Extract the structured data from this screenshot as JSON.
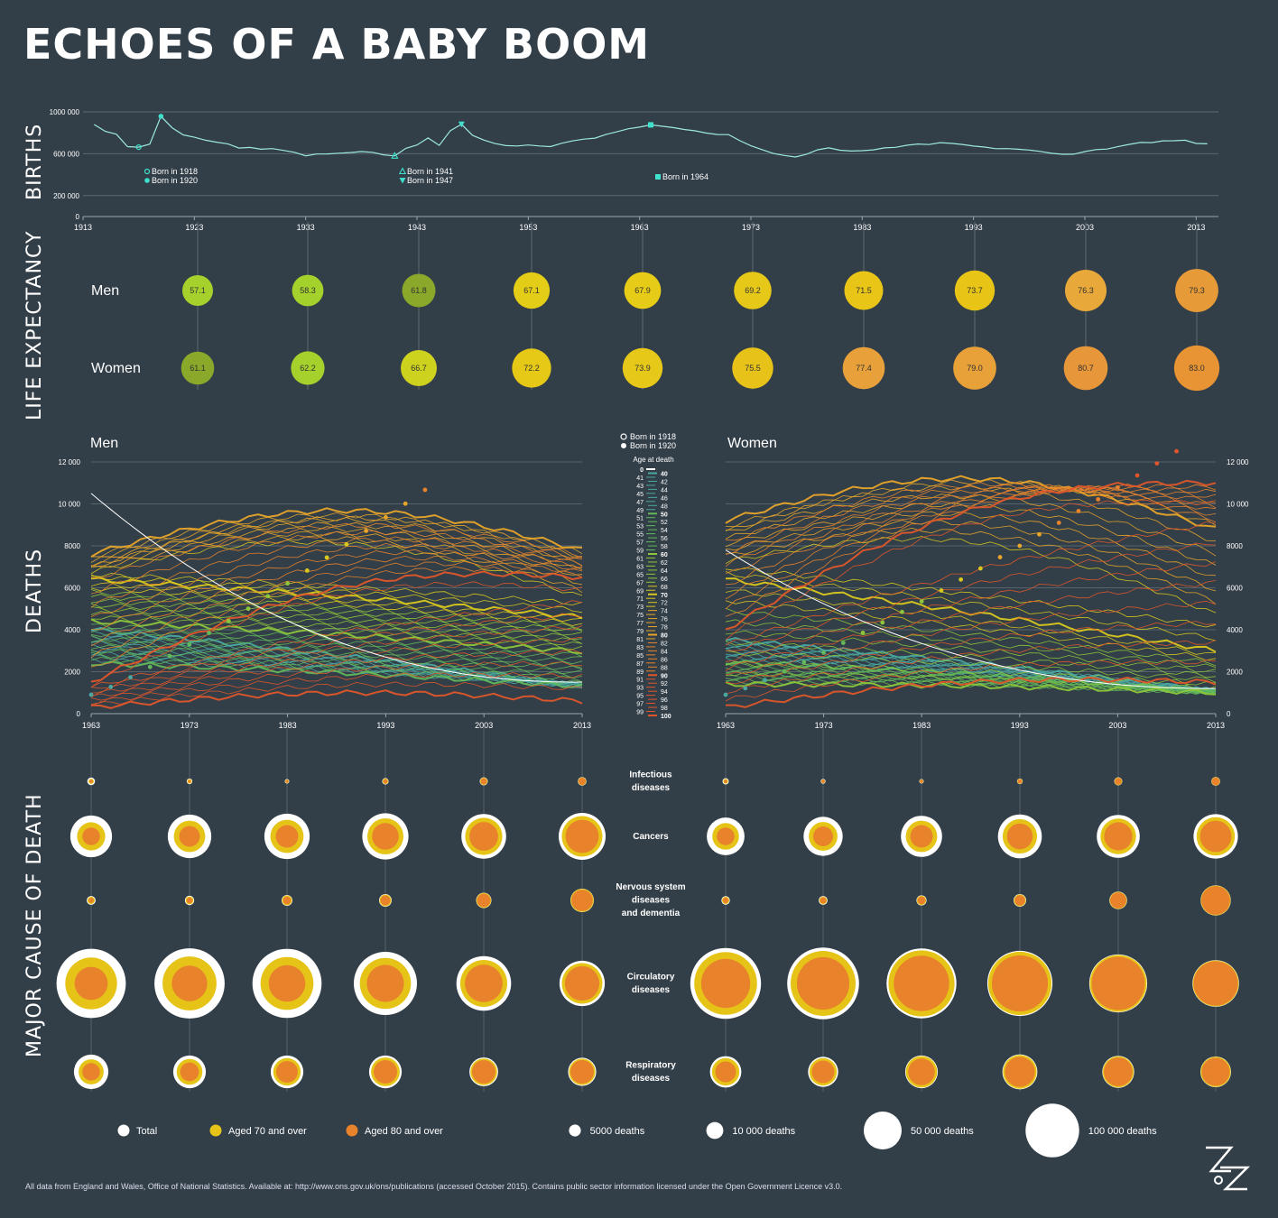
{
  "title": "ECHOES OF A BABY BOOM",
  "section_labels": {
    "births": "BIRTHS",
    "life_expectancy": "LIFE EXPECTANCY",
    "deaths": "DEATHS",
    "cause": "MAJOR CAUSE OF DEATH"
  },
  "colors": {
    "background": "#333f48",
    "births_line": "#9ce8e0",
    "marker": "#3fe0cc",
    "total": "#ffffff",
    "aged70": "#e6c417",
    "aged80": "#e8832c"
  },
  "chart_data": [
    {
      "type": "line",
      "id": "births",
      "x_range": [
        1913,
        2015
      ],
      "ylim": [
        0,
        1000000
      ],
      "y_ticks": [
        "0",
        "200 000",
        "600 000",
        "1000 000"
      ],
      "x_ticks": [
        "1913",
        "1923",
        "1933",
        "1943",
        "1953",
        "1963",
        "1973",
        "1983",
        "1993",
        "2003",
        "2013"
      ],
      "grid": true,
      "years": [
        1914,
        1915,
        1916,
        1917,
        1918,
        1919,
        1920,
        1921,
        1922,
        1923,
        1924,
        1925,
        1926,
        1927,
        1928,
        1929,
        1930,
        1931,
        1932,
        1933,
        1934,
        1935,
        1936,
        1937,
        1938,
        1939,
        1940,
        1941,
        1942,
        1943,
        1944,
        1945,
        1946,
        1947,
        1948,
        1949,
        1950,
        1951,
        1952,
        1953,
        1954,
        1955,
        1956,
        1957,
        1958,
        1959,
        1960,
        1961,
        1962,
        1963,
        1964,
        1965,
        1966,
        1967,
        1968,
        1969,
        1970,
        1971,
        1972,
        1973,
        1974,
        1975,
        1976,
        1977,
        1978,
        1979,
        1980,
        1981,
        1982,
        1983,
        1984,
        1985,
        1986,
        1987,
        1988,
        1989,
        1990,
        1991,
        1992,
        1993,
        1994,
        1995,
        1996,
        1997,
        1998,
        1999,
        2000,
        2001,
        2002,
        2003,
        2004,
        2005,
        2006,
        2007,
        2008,
        2009,
        2010,
        2011,
        2012,
        2013,
        2014
      ],
      "values": [
        879000,
        814000,
        786000,
        668000,
        663000,
        692000,
        958000,
        848000,
        780000,
        758000,
        729000,
        710000,
        695000,
        654000,
        660000,
        643000,
        649000,
        632000,
        614000,
        580000,
        597000,
        598000,
        605000,
        611000,
        621000,
        614000,
        590000,
        579000,
        652000,
        684000,
        751000,
        680000,
        821000,
        881000,
        775000,
        731000,
        697000,
        678000,
        674000,
        684000,
        674000,
        668000,
        700000,
        723000,
        740000,
        749000,
        785000,
        811000,
        839000,
        854000,
        876000,
        863000,
        850000,
        832000,
        819000,
        797000,
        784000,
        783000,
        725000,
        676000,
        640000,
        603000,
        584000,
        569000,
        596000,
        638000,
        656000,
        634000,
        626000,
        629000,
        637000,
        656000,
        661000,
        681000,
        693000,
        688000,
        706000,
        699000,
        689000,
        673000,
        664000,
        648000,
        649000,
        643000,
        635000,
        622000,
        604000,
        595000,
        596000,
        621000,
        640000,
        645000,
        669000,
        690000,
        708000,
        706000,
        723000,
        724000,
        729000,
        698000,
        695000
      ],
      "annotations": [
        {
          "label": "Born in 1918",
          "year": 1918,
          "marker": "open-circle"
        },
        {
          "label": "Born in 1920",
          "year": 1920,
          "marker": "filled-circle"
        },
        {
          "label": "Born in 1941",
          "year": 1941,
          "marker": "open-triangle"
        },
        {
          "label": "Born in 1947",
          "year": 1947,
          "marker": "filled-triangle-down"
        },
        {
          "label": "Born in 1964",
          "year": 1964,
          "marker": "filled-square"
        }
      ]
    },
    {
      "type": "bubble",
      "id": "life_expectancy",
      "row_labels": [
        "Men",
        "Women"
      ],
      "categories": [
        "1923",
        "1933",
        "1943",
        "1953",
        "1963",
        "1973",
        "1983",
        "1993",
        "2003",
        "2013"
      ],
      "series": [
        {
          "name": "Men",
          "values": [
            57.1,
            58.3,
            61.8,
            67.1,
            67.9,
            69.2,
            71.5,
            73.7,
            76.3,
            79.3
          ]
        },
        {
          "name": "Women",
          "values": [
            61.1,
            62.2,
            66.7,
            72.2,
            73.9,
            75.5,
            77.4,
            79.0,
            80.7,
            83.0
          ]
        }
      ],
      "labels": {
        "Men": [
          "57.1",
          "58.3",
          "61.8",
          "67.1",
          "67.9",
          "69.2",
          "71.5",
          "73.7",
          "76.3",
          "79.3"
        ],
        "Women": [
          "61.1",
          "62.2",
          "66.7",
          "72.2",
          "73.9",
          "75.5",
          "77.4",
          "79.0",
          "80.7",
          "83.0"
        ]
      },
      "fill_colors": {
        "Men": [
          "#a6d12c",
          "#a4d12b",
          "#8aa82a",
          "#e4cd17",
          "#e6cb17",
          "#e6c818",
          "#e8c516",
          "#e8c416",
          "#e8a83a",
          "#e69a38"
        ],
        "Women": [
          "#8aa82a",
          "#a6d12c",
          "#ccd21d",
          "#e6c817",
          "#e6c818",
          "#e7c219",
          "#e8a03a",
          "#e8a038",
          "#e8963a",
          "#e89434"
        ]
      }
    },
    {
      "type": "line",
      "id": "deaths",
      "panels": [
        "Men",
        "Women"
      ],
      "x_range": [
        1963,
        2013
      ],
      "x_ticks": [
        "1963",
        "1973",
        "1983",
        "1993",
        "2003",
        "2013"
      ],
      "ylim": [
        0,
        12000
      ],
      "y_ticks": [
        "0",
        "2000",
        "4000",
        "6000",
        "8000",
        "10 000",
        "12 000"
      ],
      "series_by": "Age at death",
      "age_range": [
        40,
        100
      ],
      "legend_title": "Age at death",
      "legend_left": [
        "0",
        "41",
        "43",
        "45",
        "47",
        "49",
        "51",
        "53",
        "55",
        "57",
        "59",
        "61",
        "63",
        "65",
        "67",
        "69",
        "71",
        "73",
        "75",
        "77",
        "79",
        "81",
        "83",
        "85",
        "87",
        "89",
        "91",
        "93",
        "95",
        "97",
        "99"
      ],
      "legend_right": [
        "40",
        "42",
        "44",
        "46",
        "48",
        "50",
        "52",
        "54",
        "56",
        "58",
        "60",
        "62",
        "64",
        "66",
        "68",
        "70",
        "72",
        "74",
        "76",
        "78",
        "80",
        "82",
        "84",
        "86",
        "88",
        "90",
        "92",
        "94",
        "96",
        "98",
        "100"
      ],
      "cohort_legend": [
        "Born in 1918",
        "Born in 1920"
      ],
      "reference_values_men": {
        "age_0": [
          10500,
          1500
        ],
        "age_50": [
          2400,
          1300
        ],
        "age_70": [
          6400,
          4600
        ],
        "age_80": [
          7600,
          7800
        ],
        "age_90": [
          1500,
          6500
        ],
        "age_100": [
          300,
          600
        ]
      },
      "reference_values_women": {
        "age_0": [
          7800,
          1200
        ],
        "age_60": [
          1400,
          1000
        ],
        "age_70": [
          6400,
          3000
        ],
        "age_80": [
          9200,
          8800
        ],
        "age_90": [
          4000,
          11000
        ],
        "age_100": [
          300,
          1500
        ]
      },
      "peak_men": {
        "year": 1998,
        "value": 11000
      },
      "peak_women": {
        "year": 2010,
        "value": 12800
      }
    },
    {
      "type": "bubble",
      "id": "cause_of_death",
      "causes": [
        "Infectious diseases",
        "Cancers",
        "Nervous system diseases and dementia",
        "Circulatory diseases",
        "Respiratory diseases"
      ],
      "years": [
        "1963",
        "1973",
        "1983",
        "1993",
        "2003",
        "2013"
      ],
      "size_unit": "deaths",
      "layers": [
        "Total",
        "Aged 70 and over",
        "Aged 80 and over"
      ],
      "men": {
        "Infectious diseases": {
          "total": [
            1500,
            800,
            500,
            1100,
            1700,
            1900
          ],
          "aged70": [
            700,
            500,
            300,
            800,
            1400,
            1700
          ],
          "aged80": [
            300,
            200,
            200,
            500,
            1000,
            1300
          ]
        },
        "Cancers": {
          "total": [
            44000,
            48000,
            52000,
            54000,
            51000,
            56000
          ],
          "aged70": [
            20000,
            25000,
            28000,
            33000,
            35000,
            42000
          ],
          "aged80": [
            8000,
            11000,
            13000,
            18000,
            21000,
            28000
          ]
        },
        "Nervous system diseases and dementia": {
          "total": [
            2000,
            2200,
            3000,
            4000,
            6000,
            14000
          ],
          "aged70": [
            1300,
            1600,
            2500,
            3500,
            5500,
            13500
          ],
          "aged80": [
            700,
            900,
            1600,
            2500,
            4500,
            11500
          ]
        },
        "Circulatory diseases": {
          "total": [
            122000,
            125000,
            121000,
            101000,
            76000,
            52000
          ],
          "aged70": [
            68000,
            74000,
            71000,
            66000,
            56000,
            42000
          ],
          "aged80": [
            28000,
            32000,
            34000,
            35000,
            36000,
            30000
          ]
        },
        "Respiratory diseases": {
          "total": [
            30000,
            27000,
            27000,
            27000,
            21000,
            20000
          ],
          "aged70": [
            16000,
            17000,
            19000,
            21000,
            18000,
            17500
          ],
          "aged80": [
            8000,
            9000,
            12000,
            14000,
            14000,
            14000
          ]
        }
      },
      "women": {
        "Infectious diseases": {
          "total": [
            1000,
            600,
            500,
            800,
            1700,
            2000
          ],
          "aged70": [
            600,
            400,
            400,
            700,
            1500,
            1800
          ],
          "aged80": [
            300,
            300,
            300,
            500,
            1200,
            1600
          ]
        },
        "Cancers": {
          "total": [
            36000,
            39000,
            43000,
            49000,
            47000,
            50000
          ],
          "aged70": [
            18000,
            21000,
            25000,
            30000,
            32000,
            37000
          ],
          "aged80": [
            8000,
            10000,
            13000,
            17000,
            20000,
            25000
          ]
        },
        "Nervous system diseases and dementia": {
          "total": [
            1800,
            2000,
            2600,
            4000,
            8000,
            23000
          ],
          "aged70": [
            1300,
            1500,
            2200,
            3600,
            7500,
            22500
          ],
          "aged80": [
            800,
            1000,
            1600,
            2800,
            6500,
            21000
          ]
        },
        "Circulatory diseases": {
          "total": [
            127000,
            131000,
            124000,
            108000,
            85000,
            55000
          ],
          "aged70": [
            100000,
            107000,
            111000,
            102000,
            82000,
            53500
          ],
          "aged80": [
            61000,
            70000,
            78000,
            80000,
            72000,
            50000
          ]
        },
        "Respiratory diseases": {
          "total": [
            25000,
            23000,
            27000,
            31000,
            26000,
            24000
          ],
          "aged70": [
            19000,
            19000,
            25000,
            29000,
            24500,
            23000
          ],
          "aged80": [
            11000,
            13000,
            18000,
            23000,
            21000,
            20000
          ]
        }
      },
      "cause_labels": [
        [
          "Infectious",
          "diseases"
        ],
        [
          "Cancers"
        ],
        [
          "Nervous system",
          "diseases",
          "and dementia"
        ],
        [
          "Circulatory",
          "diseases"
        ],
        [
          "Respiratory",
          "diseases"
        ]
      ]
    }
  ],
  "legend": {
    "layers": [
      "Total",
      "Aged 70 and over",
      "Aged 80 and over"
    ],
    "sizes": [
      {
        "label": "5000 deaths",
        "value": 5000
      },
      {
        "label": "10 000 deaths",
        "value": 10000
      },
      {
        "label": "50 000 deaths",
        "value": 50000
      },
      {
        "label": "100 000 deaths",
        "value": 100000
      }
    ]
  },
  "footer": "All data from England and Wales, Office of National Statistics. Available at: http://www.ons.gov.uk/ons/publications (accessed October 2015). Contains public sector information licensed under the Open Government Licence v3.0."
}
